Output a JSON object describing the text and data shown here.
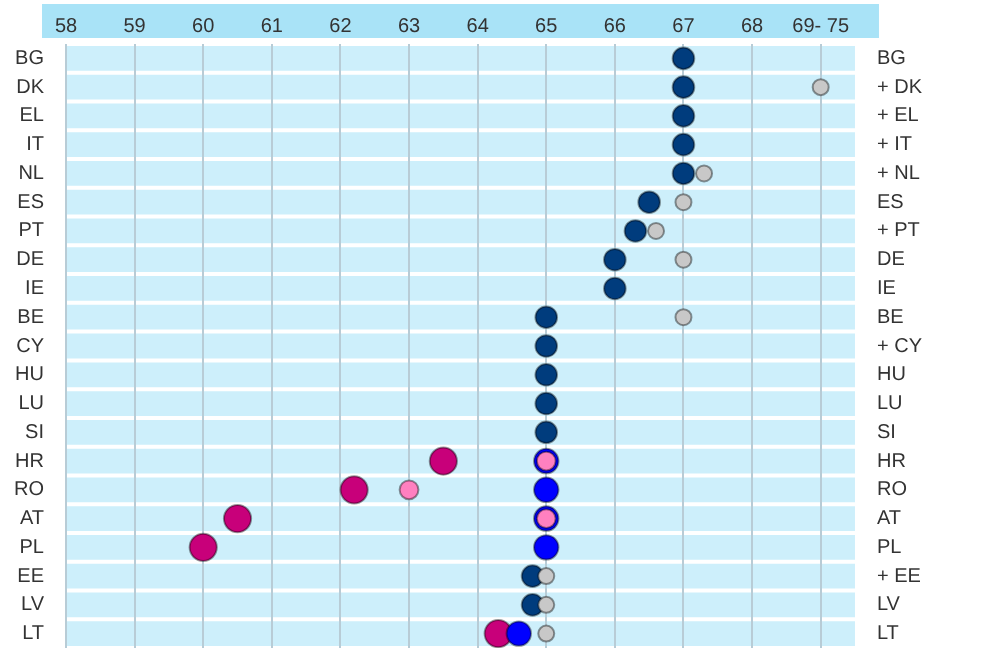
{
  "chart_data": {
    "type": "scatter",
    "orientation": "horizontal",
    "marker": "circle",
    "grid": "x",
    "categories": [
      "BG",
      "DK",
      "EL",
      "IT",
      "NL",
      "ES",
      "PT",
      "DE",
      "IE",
      "BE",
      "CY",
      "HU",
      "LU",
      "SI",
      "HR",
      "RO",
      "AT",
      "PL",
      "EE",
      "LV",
      "LT"
    ],
    "xlim": [
      58,
      69.5
    ],
    "xticks": [
      58,
      59,
      60,
      61,
      62,
      63,
      64,
      65,
      66,
      67,
      68,
      {
        "value": 69,
        "label": "69- 75"
      }
    ],
    "series": [
      {
        "color": "#c8c8c8",
        "values": [
          null,
          69,
          null,
          null,
          67.3,
          67,
          66.6,
          67,
          null,
          67,
          null,
          null,
          null,
          null,
          null,
          null,
          null,
          null,
          65,
          65,
          65
        ]
      },
      {
        "color": "#ff80c0",
        "values": [
          null,
          null,
          null,
          null,
          null,
          null,
          null,
          null,
          null,
          null,
          null,
          null,
          null,
          null,
          65,
          63,
          65,
          null,
          null,
          null,
          null
        ]
      },
      {
        "color": "#003c7d",
        "values": [
          67,
          67,
          67,
          67,
          67,
          66.5,
          66.3,
          66,
          66,
          65,
          65,
          65,
          65,
          65,
          null,
          null,
          null,
          null,
          64.8,
          64.8,
          null
        ]
      },
      {
        "color": "#0000ff",
        "values": [
          null,
          null,
          null,
          null,
          null,
          null,
          null,
          null,
          null,
          null,
          null,
          null,
          null,
          null,
          65,
          65,
          65,
          65,
          null,
          null,
          64.6
        ]
      },
      {
        "color": "#c8007a",
        "values": [
          null,
          null,
          null,
          null,
          null,
          null,
          null,
          null,
          null,
          null,
          null,
          null,
          null,
          null,
          63.5,
          62.2,
          60.5,
          60,
          null,
          null,
          64.3
        ]
      }
    ],
    "y2_categories": [
      "BG",
      "+ DK",
      "+ EL",
      "+ IT",
      "+ NL",
      "ES",
      "+ PT",
      "DE",
      "IE",
      "BE",
      "+ CY",
      "HU",
      "LU",
      "SI",
      "HR",
      "RO",
      "AT",
      "PL",
      "+ EE",
      "LV",
      "LT"
    ]
  }
}
